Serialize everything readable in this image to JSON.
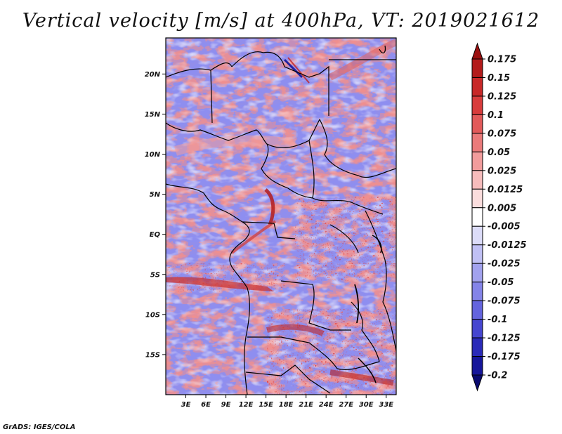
{
  "title": "Vertical velocity [m/s] at 400hPa, VT: 2019021612",
  "credit": "GrADS: IGES/COLA",
  "map": {
    "lat_labels": [
      "20N",
      "15N",
      "10N",
      "5N",
      "EQ",
      "5S",
      "10S",
      "15S"
    ],
    "lat_values": [
      20,
      15,
      10,
      5,
      0,
      -5,
      -10,
      -15
    ],
    "lon_labels": [
      "3E",
      "6E",
      "9E",
      "12E",
      "15E",
      "18E",
      "21E",
      "24E",
      "27E",
      "30E",
      "33E"
    ],
    "lon_values": [
      3,
      6,
      9,
      12,
      15,
      18,
      21,
      24,
      27,
      30,
      33
    ],
    "lon_range": [
      0,
      34.5
    ],
    "lat_range": [
      -20,
      24.5
    ]
  },
  "colorbar": {
    "labels": [
      "0.175",
      "0.15",
      "0.125",
      "0.1",
      "0.075",
      "0.05",
      "0.025",
      "0.0125",
      "0.005",
      "-0.005",
      "-0.0125",
      "-0.025",
      "-0.05",
      "-0.075",
      "-0.1",
      "-0.125",
      "-0.175",
      "-0.2"
    ],
    "colors": [
      "#9b1010",
      "#b31b1b",
      "#c82828",
      "#d83c3c",
      "#e25a5a",
      "#ea7a7a",
      "#f19c9c",
      "#f6bcbc",
      "#fadddd",
      "#ffffff",
      "#dcdcf8",
      "#c0c0f4",
      "#a2a2ee",
      "#8484e8",
      "#6464de",
      "#4646d0",
      "#2a2ab8",
      "#16169a",
      "#0a0a70"
    ]
  }
}
